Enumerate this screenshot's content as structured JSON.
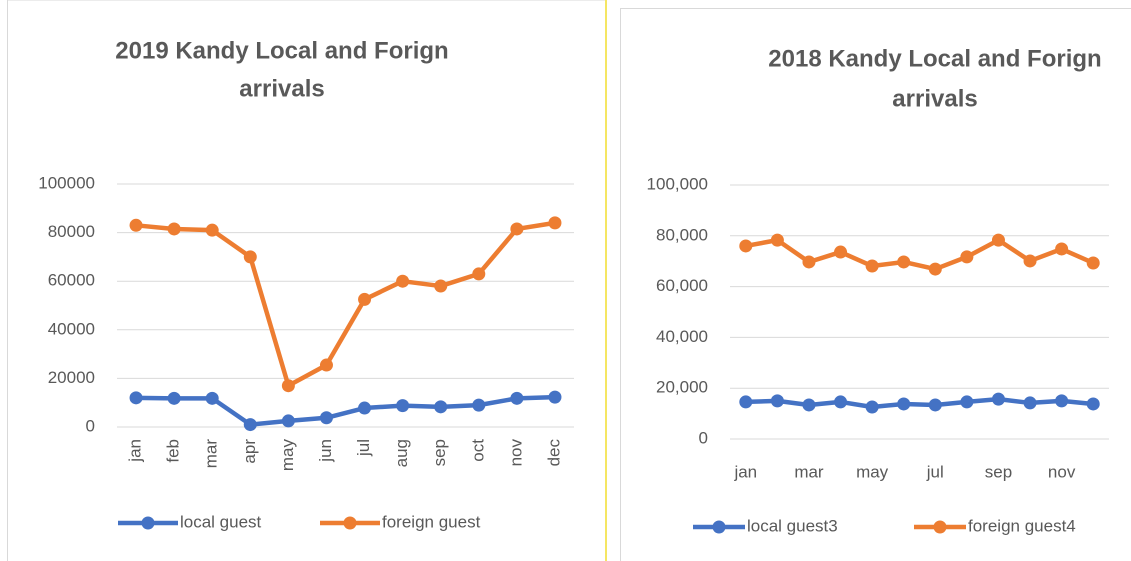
{
  "chart_data": [
    {
      "type": "line",
      "title": [
        "2019 Kandy Local and Forign",
        "arrivals"
      ],
      "categories": [
        "jan",
        "feb",
        "mar",
        "apr",
        "may",
        "jun",
        "jul",
        "aug",
        "sep",
        "oct",
        "nov",
        "dec"
      ],
      "series": [
        {
          "name": "local guest",
          "color": "#4472c4",
          "values": [
            12000,
            11800,
            11800,
            1000,
            2500,
            3800,
            7800,
            8800,
            8300,
            9000,
            11800,
            12300
          ]
        },
        {
          "name": "foreign guest",
          "color": "#ed7d31",
          "values": [
            83000,
            81500,
            81000,
            70000,
            17000,
            25500,
            52500,
            60000,
            58000,
            63000,
            81500,
            84000
          ]
        }
      ],
      "ylim": [
        0,
        100000
      ],
      "yticks": [
        0,
        20000,
        40000,
        60000,
        80000,
        100000
      ],
      "grid": true,
      "legend": "bottom"
    },
    {
      "type": "line",
      "title": [
        "2018 Kandy Local and Forign",
        "arrivals"
      ],
      "categories": [
        "jan",
        null,
        "mar",
        null,
        "may",
        null,
        "jul",
        null,
        "sep",
        null,
        "nov",
        null
      ],
      "series": [
        {
          "name": "local guest3",
          "color": "#4472c4",
          "values": [
            14600,
            15000,
            13400,
            14600,
            12600,
            13800,
            13400,
            14600,
            15700,
            14200,
            15000,
            13800
          ]
        },
        {
          "name": "foreign guest4",
          "color": "#ed7d31",
          "values": [
            76000,
            78300,
            69700,
            73600,
            68100,
            69700,
            66900,
            71700,
            78300,
            70100,
            74800,
            69300
          ]
        }
      ],
      "ylim": [
        0,
        100000
      ],
      "yticks": [
        0,
        {
          "value": 20000,
          "label": "20,000"
        },
        {
          "value": 40000,
          "label": "40,000"
        },
        {
          "value": 60000,
          "label": "60,000"
        },
        {
          "value": 80000,
          "label": "80,000"
        },
        {
          "value": 100000,
          "label": "100,000"
        }
      ],
      "grid": true,
      "legend": "bottom"
    }
  ]
}
